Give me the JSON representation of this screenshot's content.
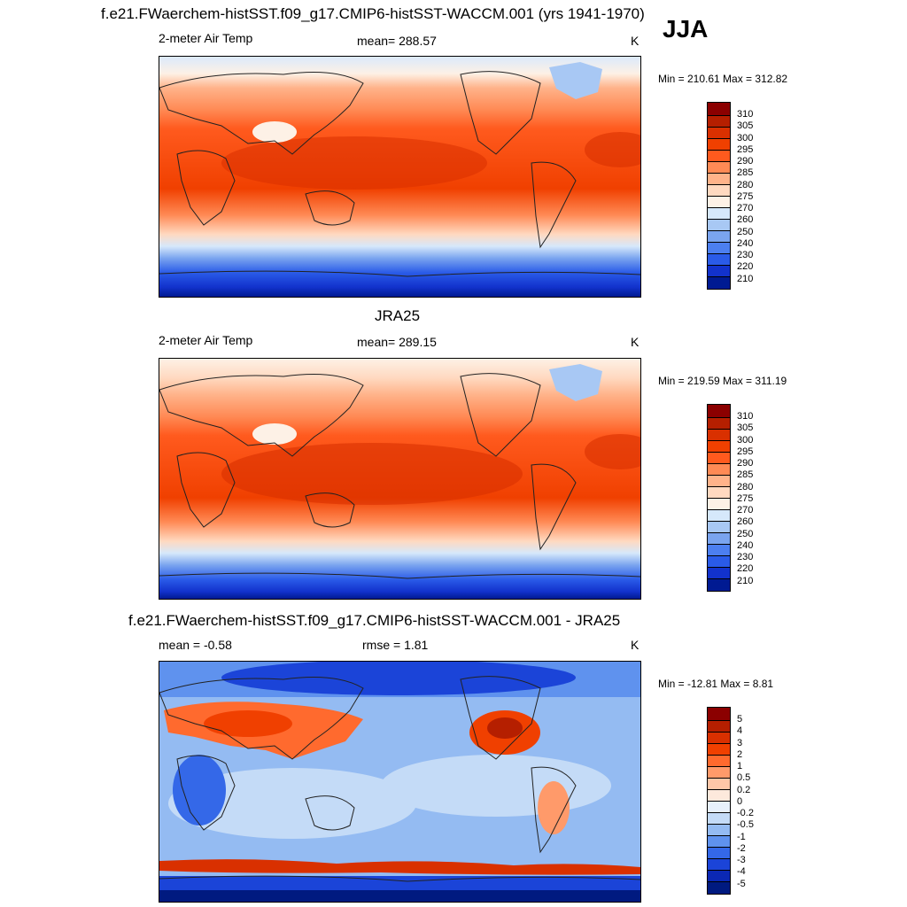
{
  "header": {
    "title": "f.e21.FWaerchem-histSST.f09_g17.CMIP6-histSST-WACCM.001 (yrs 1941-1970)",
    "season": "JJA"
  },
  "panels": [
    {
      "id": "model",
      "variable": "2-meter Air Temp",
      "stat": "mean= 288.57",
      "units": "K",
      "minmax": "Min = 210.61 Max = 312.82",
      "colorbar": {
        "labels": [
          "310",
          "305",
          "300",
          "295",
          "290",
          "285",
          "280",
          "275",
          "270",
          "260",
          "250",
          "240",
          "230",
          "220",
          "210"
        ],
        "colors": [
          "#8b0000",
          "#b51f00",
          "#d93000",
          "#f04000",
          "#ff5a1e",
          "#ff8a55",
          "#ffb38a",
          "#ffd9c0",
          "#fdf1e6",
          "#d6e8fb",
          "#a8c8f4",
          "#7aa4ef",
          "#4c7ff0",
          "#2a5be8",
          "#1232cc",
          "#001a92"
        ]
      }
    },
    {
      "id": "obs",
      "title": "JRA25",
      "variable": "2-meter Air Temp",
      "stat": "mean= 289.15",
      "units": "K",
      "minmax": "Min = 219.59 Max = 311.19",
      "colorbar": {
        "labels": [
          "310",
          "305",
          "300",
          "295",
          "290",
          "285",
          "280",
          "275",
          "270",
          "260",
          "250",
          "240",
          "230",
          "220",
          "210"
        ],
        "colors": [
          "#8b0000",
          "#b51f00",
          "#d93000",
          "#f04000",
          "#ff5a1e",
          "#ff8a55",
          "#ffb38a",
          "#ffd9c0",
          "#fdf1e6",
          "#d6e8fb",
          "#a8c8f4",
          "#7aa4ef",
          "#4c7ff0",
          "#2a5be8",
          "#1232cc",
          "#001a92"
        ]
      }
    },
    {
      "id": "diff",
      "title": "f.e21.FWaerchem-histSST.f09_g17.CMIP6-histSST-WACCM.001 - JRA25",
      "stat": "mean =  -0.58",
      "rmse": "rmse =   1.81",
      "units": "K",
      "minmax": "Min = -12.81 Max =   8.81",
      "colorbar": {
        "labels": [
          "5",
          "4",
          "3",
          "2",
          "1",
          "0.5",
          "0.2",
          "0",
          "-0.2",
          "-0.5",
          "-1",
          "-2",
          "-3",
          "-4",
          "-5"
        ],
        "colors": [
          "#8b0000",
          "#b51f00",
          "#d93000",
          "#f04000",
          "#ff6a2e",
          "#ff9a6a",
          "#ffc7a8",
          "#fde9dc",
          "#e8f0fb",
          "#c4dbf7",
          "#94bbf2",
          "#5f92ee",
          "#3468e8",
          "#1b44d8",
          "#0b28b4",
          "#001a80"
        ]
      }
    }
  ]
}
